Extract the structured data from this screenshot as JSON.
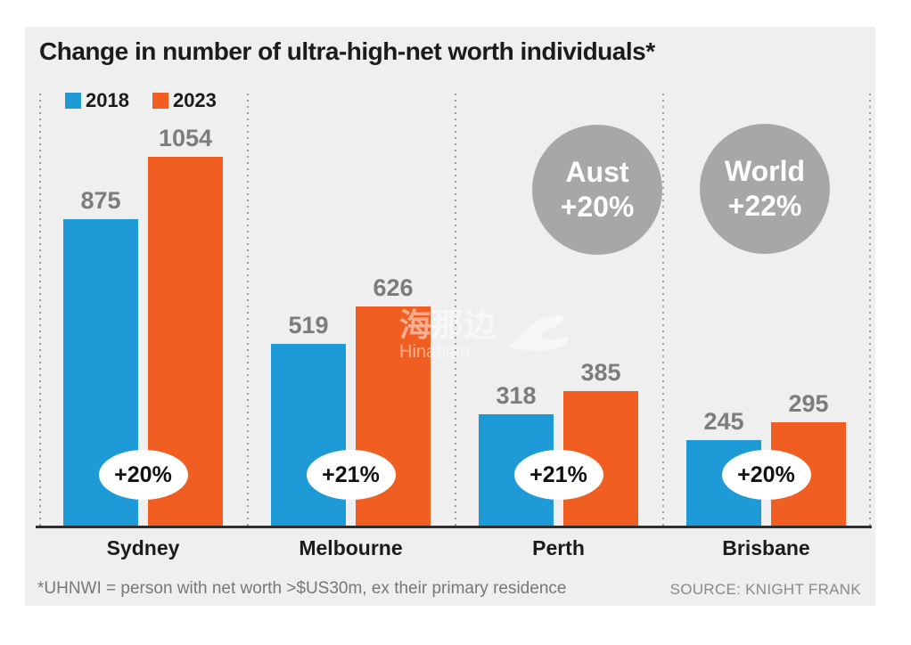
{
  "page": {
    "title": "Change in number of ultra-high-net worth individuals*",
    "footnote": "*UHNWI = person with net worth >$US30m, ex their primary residence",
    "source": "SOURCE: KNIGHT FRANK"
  },
  "watermark": {
    "cn": "海那边",
    "en": "Hinabian"
  },
  "colors": {
    "panel_bg": "#EFEFEF",
    "blue_2018": "#1E9BD7",
    "orange_2023": "#F05E22",
    "value_label_gray": "#7C7C7E",
    "annotation_circle_gray": "#A7A7A9",
    "baseline_dark": "#2E2E2E",
    "dotted_line_gray": "#9B9B9B"
  },
  "chart_data": {
    "type": "bar",
    "title": "Change in number of ultra-high-net worth individuals*",
    "categories": [
      "Sydney",
      "Melbourne",
      "Perth",
      "Brisbane"
    ],
    "series": [
      {
        "name": "2018",
        "color": "#1E9BD7",
        "values": [
          875,
          519,
          318,
          245
        ]
      },
      {
        "name": "2023",
        "color": "#F05E22",
        "values": [
          1054,
          626,
          385,
          295
        ]
      }
    ],
    "growth_labels": [
      "+20%",
      "+21%",
      "+21%",
      "+20%"
    ],
    "annotations": [
      {
        "label": "Aust",
        "value": "+20%"
      },
      {
        "label": "World",
        "value": "+22%"
      }
    ],
    "ylim": [
      0,
      1054
    ],
    "grid": false,
    "legend_position": "top-left",
    "value_labels": true
  }
}
